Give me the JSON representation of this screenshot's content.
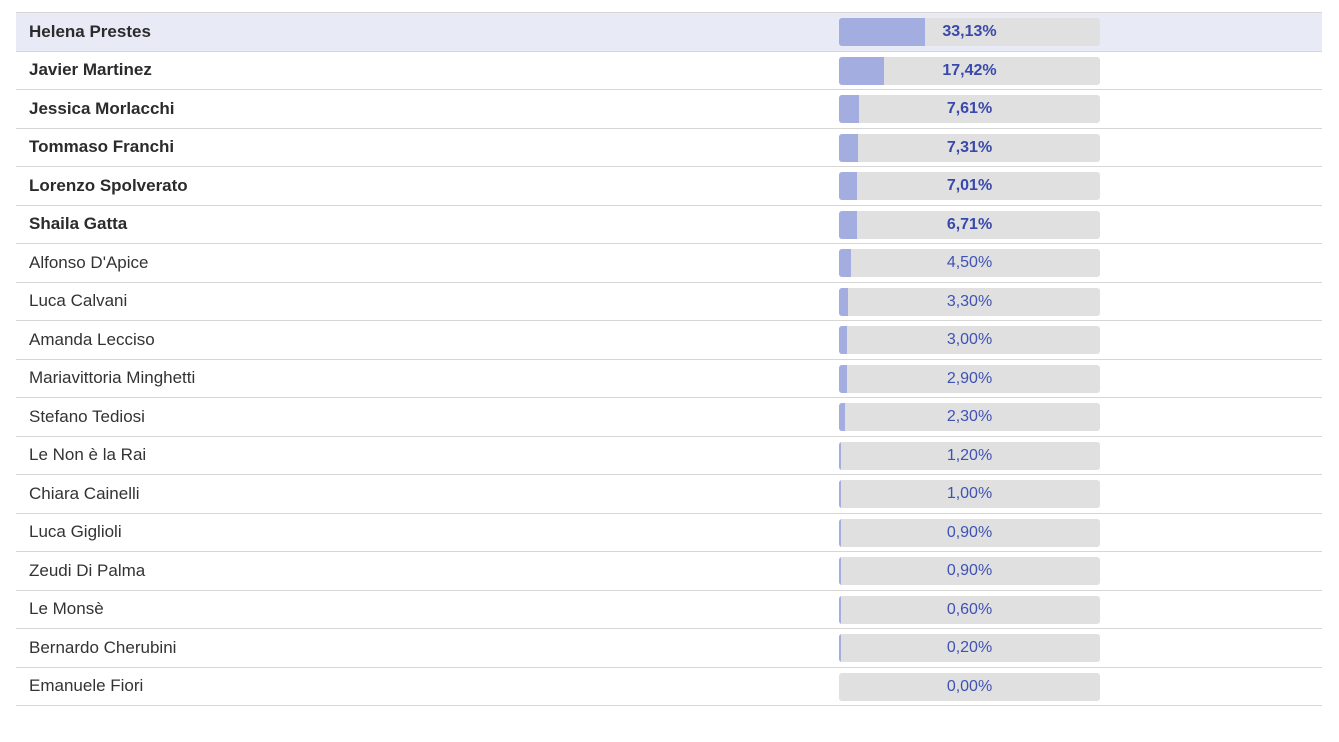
{
  "results": {
    "rows": [
      {
        "name": "Helena Prestes",
        "percent_label": "33,13%",
        "percent": 33.13,
        "bold": true,
        "highlight": true
      },
      {
        "name": "Javier Martinez",
        "percent_label": "17,42%",
        "percent": 17.42,
        "bold": true,
        "highlight": false
      },
      {
        "name": "Jessica Morlacchi",
        "percent_label": "7,61%",
        "percent": 7.61,
        "bold": true,
        "highlight": false
      },
      {
        "name": "Tommaso Franchi",
        "percent_label": "7,31%",
        "percent": 7.31,
        "bold": true,
        "highlight": false
      },
      {
        "name": "Lorenzo Spolverato",
        "percent_label": "7,01%",
        "percent": 7.01,
        "bold": true,
        "highlight": false
      },
      {
        "name": "Shaila Gatta",
        "percent_label": "6,71%",
        "percent": 6.71,
        "bold": true,
        "highlight": false
      },
      {
        "name": "Alfonso D'Apice",
        "percent_label": "4,50%",
        "percent": 4.5,
        "bold": false,
        "highlight": false
      },
      {
        "name": "Luca Calvani",
        "percent_label": "3,30%",
        "percent": 3.3,
        "bold": false,
        "highlight": false
      },
      {
        "name": "Amanda Lecciso",
        "percent_label": "3,00%",
        "percent": 3.0,
        "bold": false,
        "highlight": false
      },
      {
        "name": "Mariavittoria Minghetti",
        "percent_label": "2,90%",
        "percent": 2.9,
        "bold": false,
        "highlight": false
      },
      {
        "name": "Stefano Tediosi",
        "percent_label": "2,30%",
        "percent": 2.3,
        "bold": false,
        "highlight": false
      },
      {
        "name": "Le Non è la Rai",
        "percent_label": "1,20%",
        "percent": 1.2,
        "bold": false,
        "highlight": false
      },
      {
        "name": "Chiara Cainelli",
        "percent_label": "1,00%",
        "percent": 1.0,
        "bold": false,
        "highlight": false
      },
      {
        "name": "Luca Giglioli",
        "percent_label": "0,90%",
        "percent": 0.9,
        "bold": false,
        "highlight": false
      },
      {
        "name": "Zeudi Di Palma",
        "percent_label": "0,90%",
        "percent": 0.9,
        "bold": false,
        "highlight": false
      },
      {
        "name": "Le Monsè",
        "percent_label": "0,60%",
        "percent": 0.6,
        "bold": false,
        "highlight": false
      },
      {
        "name": "Bernardo Cherubini",
        "percent_label": "0,20%",
        "percent": 0.2,
        "bold": false,
        "highlight": false
      },
      {
        "name": "Emanuele Fiori",
        "percent_label": "0,00%",
        "percent": 0.0,
        "bold": false,
        "highlight": false
      }
    ]
  },
  "colors": {
    "bar_fill": "#a4addf",
    "bar_track": "#e0e0e0",
    "percent_text": "#3f51b5",
    "highlight_row": "#e8eaf6"
  }
}
